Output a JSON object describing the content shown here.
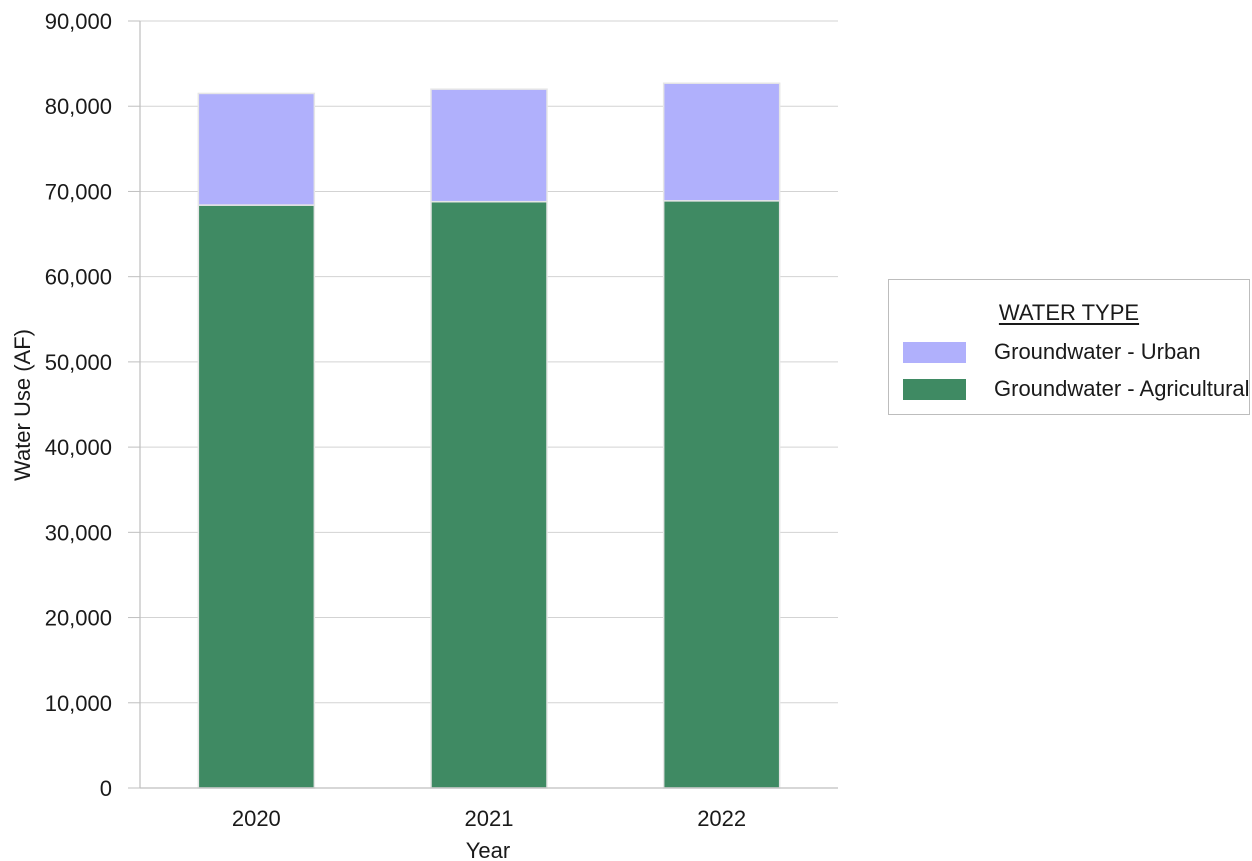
{
  "chart_data": {
    "type": "bar",
    "stacked": true,
    "categories": [
      "2020",
      "2021",
      "2022"
    ],
    "series": [
      {
        "name": "Groundwater - Agricultural",
        "values": [
          68400,
          68800,
          68900
        ],
        "color": "#3f8a63"
      },
      {
        "name": "Groundwater - Urban",
        "values": [
          13100,
          13200,
          13800
        ],
        "color": "#b0b0fc"
      }
    ],
    "title": "",
    "xlabel": "Year",
    "ylabel": "Water Use (AF)",
    "ylim": [
      0,
      90000
    ],
    "yticks": [
      0,
      10000,
      20000,
      30000,
      40000,
      50000,
      60000,
      70000,
      80000,
      90000
    ],
    "ytick_labels": [
      "0",
      "10,000",
      "20,000",
      "30,000",
      "40,000",
      "50,000",
      "60,000",
      "70,000",
      "80,000",
      "90,000"
    ],
    "grid": true,
    "legend": {
      "title": "WATER TYPE",
      "position": "right",
      "entries": [
        "Groundwater - Urban",
        "Groundwater - Agricultural"
      ]
    },
    "colors": {
      "grid": "#d3d3d3",
      "axis": "#bfbfbf",
      "bar_stroke": "#e6e6e6"
    }
  }
}
